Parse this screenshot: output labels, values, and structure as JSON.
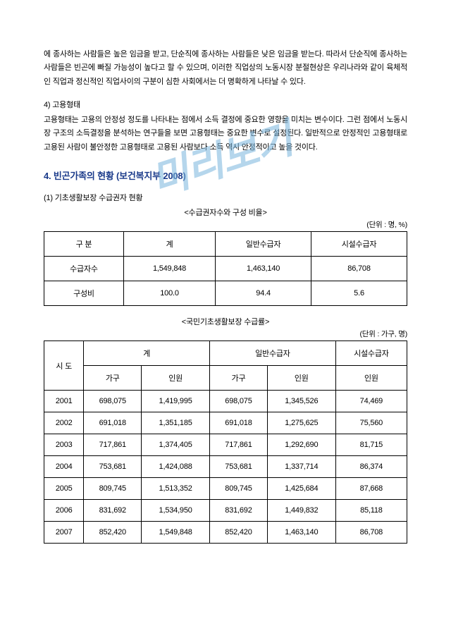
{
  "watermark": "미리보기",
  "para1": "에 종사하는 사람들은 높은 임금을 받고, 단순직에 종사하는 사람들은 낮은 임금을 받는다. 따라서 단순직에 종사하는 사람들은 빈곤에 빠질 가능성이 높다고 할 수 있으며, 이러한 직업상의 노동시장 분절현상은 우리나라와 같이 육체적인 직업과 정신적인 직업사이의 구분이 심한 사회에서는 더 명확하게 나타날 수 있다.",
  "sub4_head": "4) 고용형태",
  "sub4_body": "고용형태는 고용의 안정성 정도를 나타내는 점에서 소득 결정에 중요한 영향을 미치는 변수이다. 그런 점에서 노동시장 구조의 소득결정을 분석하는 연구들을 보면 고용형태는 중요한 변수로 설정된다. 일반적으로 안정적인 고용형태로 고용된 사람이 불안정한 고용형태로 고용된 사람보다 소득 역시 안정적이고 높을 것이다.",
  "sec4_title": "4. 빈곤가족의 현황 (보건복지부 2008)",
  "sec4_sub1": "(1) 기초생활보장 수급권자 현황",
  "tbl1": {
    "caption": "<수급권자수와 구성 비율>",
    "unit": "(단위 : 명, %)",
    "headers": [
      "구 분",
      "계",
      "일반수급자",
      "시설수급자"
    ],
    "rows": [
      [
        "수급자수",
        "1,549,848",
        "1,463,140",
        "86,708"
      ],
      [
        "구성비",
        "100.0",
        "94.4",
        "5.6"
      ]
    ]
  },
  "tbl2": {
    "caption": "<국민기초생활보장 수급률>",
    "unit": "(단위 : 가구, 명)",
    "header_top": [
      "시 도",
      "계",
      "일반수급자",
      "시설수급자"
    ],
    "header_sub": [
      "가구",
      "인원",
      "가구",
      "인원",
      "인원"
    ],
    "rows": [
      [
        "2001",
        "698,075",
        "1,419,995",
        "698,075",
        "1,345,526",
        "74,469"
      ],
      [
        "2002",
        "691,018",
        "1,351,185",
        "691,018",
        "1,275,625",
        "75,560"
      ],
      [
        "2003",
        "717,861",
        "1,374,405",
        "717,861",
        "1,292,690",
        "81,715"
      ],
      [
        "2004",
        "753,681",
        "1,424,088",
        "753,681",
        "1,337,714",
        "86,374"
      ],
      [
        "2005",
        "809,745",
        "1,513,352",
        "809,745",
        "1,425,684",
        "87,668"
      ],
      [
        "2006",
        "831,692",
        "1,534,950",
        "831,692",
        "1,449,832",
        "85,118"
      ],
      [
        "2007",
        "852,420",
        "1,549,848",
        "852,420",
        "1,463,140",
        "86,708"
      ]
    ]
  }
}
